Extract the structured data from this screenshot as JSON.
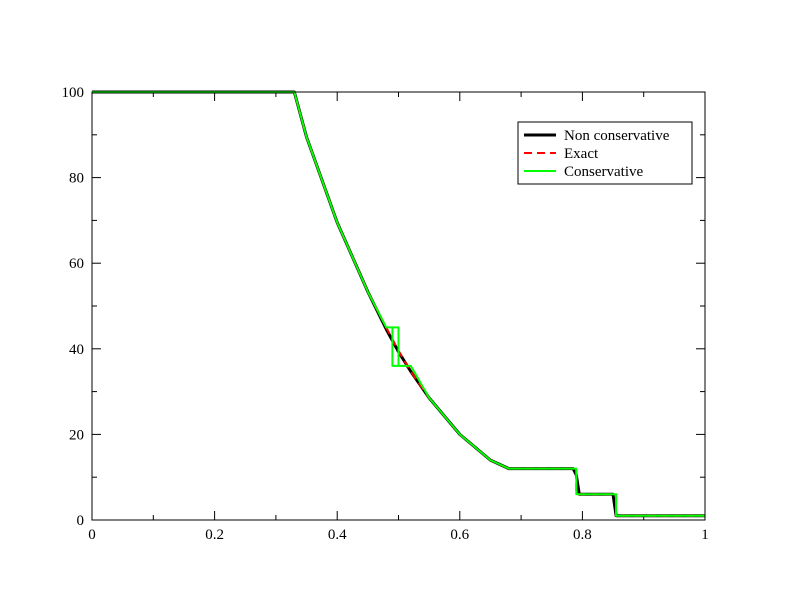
{
  "chart_data": {
    "type": "line",
    "title": "",
    "xlabel": "",
    "ylabel": "",
    "xlim": [
      0,
      1
    ],
    "ylim": [
      0,
      100
    ],
    "x_ticks": [
      "0",
      "0.2",
      "0.4",
      "0.6",
      "0.8",
      "1"
    ],
    "x_tick_values": [
      0,
      0.2,
      0.4,
      0.6,
      0.8,
      1
    ],
    "y_ticks": [
      "0",
      "20",
      "40",
      "60",
      "80",
      "100"
    ],
    "y_tick_values": [
      0,
      20,
      40,
      60,
      80,
      100
    ],
    "x_minor_step": 0.1,
    "y_minor_step": 10,
    "grid": false,
    "legend_position": "top-right",
    "series": [
      {
        "name": "Non conservative",
        "color": "#000000",
        "style": "solid",
        "x": [
          0,
          0.33,
          0.35,
          0.4,
          0.45,
          0.48,
          0.5,
          0.52,
          0.55,
          0.6,
          0.65,
          0.68,
          0.785,
          0.79,
          0.795,
          0.85,
          0.855,
          1
        ],
        "y": [
          100,
          100,
          89.5,
          69.5,
          53.3,
          44.6,
          39.3,
          34.7,
          28.5,
          20.0,
          14.0,
          12.0,
          12.0,
          10.5,
          6.0,
          6.0,
          1.0,
          1.0
        ]
      },
      {
        "name": "Exact",
        "color": "#ff0000",
        "style": "dashed",
        "x": [
          0,
          0.33,
          0.35,
          0.4,
          0.45,
          0.48,
          0.5,
          0.52,
          0.55,
          0.6,
          0.65,
          0.68,
          0.79,
          0.79,
          0.855,
          0.855,
          1
        ],
        "y": [
          100,
          100,
          89.5,
          69.5,
          53.3,
          45.0,
          39.5,
          34.7,
          28.5,
          20.0,
          14.0,
          12.0,
          12.0,
          6.0,
          6.0,
          1.0,
          1.0
        ]
      },
      {
        "name": "Conservative",
        "color": "#00ff00",
        "style": "solid",
        "x": [
          0,
          0.33,
          0.35,
          0.4,
          0.45,
          0.48,
          0.5,
          0.5,
          0.49,
          0.49,
          0.5,
          0.5,
          0.52,
          0.55,
          0.6,
          0.65,
          0.68,
          0.79,
          0.79,
          0.855,
          0.855,
          1
        ],
        "y": [
          100,
          100,
          89.5,
          69.5,
          53.3,
          45.0,
          45.0,
          36.0,
          36.0,
          45.0,
          45.0,
          36.0,
          36.0,
          28.5,
          20.0,
          14.0,
          12.0,
          12.0,
          6.0,
          6.0,
          1.0,
          1.0
        ]
      }
    ]
  }
}
